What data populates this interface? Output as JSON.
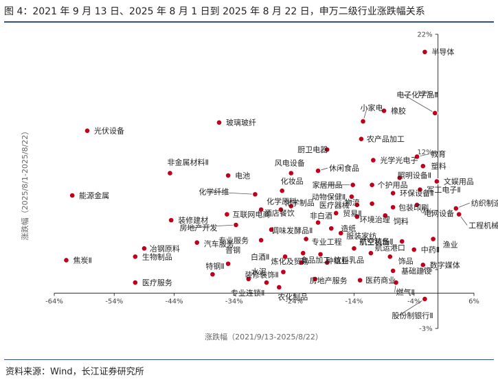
{
  "figure": {
    "title": "图 4：2021 年 9 月 13 日、2025 年 8 月 1 日到 2025 年 8 月 22 日，申万二级行业涨跌幅关系",
    "source": "资料来源：Wind，长江证券研究所"
  },
  "colors": {
    "accent": "#2b4f8a",
    "point_fill": "#c0001a",
    "point_stroke": "#ffffff",
    "axis": "#333333",
    "leader": "#555555"
  },
  "chart_data": {
    "type": "scatter",
    "title": "",
    "xlabel": "涨跌幅（2021/9/13-2025/8/22）",
    "ylabel": "涨跌幅（2025/8/1-2025/8/22）",
    "xlim": [
      -64,
      6
    ],
    "ylim": [
      -3,
      22
    ],
    "x_ticks": [
      -64,
      -54,
      -44,
      -34,
      -24,
      -14,
      -4,
      6
    ],
    "x_tick_labels": [
      "-64%",
      "-54%",
      "-44%",
      "-34%",
      "-24%",
      "-14%",
      "-4%",
      "6%"
    ],
    "y_ticks": [
      -3,
      2,
      7,
      12,
      17,
      22
    ],
    "y_tick_labels": [
      "-3%",
      "2%",
      "7%",
      "12%",
      "17%",
      "22%"
    ],
    "grid": false,
    "legend": "none",
    "points": [
      {
        "name": "半导体",
        "x": -2.2,
        "y": 20.5
      },
      {
        "name": "电子化学品Ⅱ",
        "x": -0.5,
        "y": 15.3
      },
      {
        "name": "橡胶",
        "x": -9,
        "y": 15.5
      },
      {
        "name": "小家电",
        "x": -12.5,
        "y": 14.6
      },
      {
        "name": "农产品加工",
        "x": -12.8,
        "y": 13.1
      },
      {
        "name": "光伏设备",
        "x": -58.5,
        "y": 13.8
      },
      {
        "name": "玻璃玻纤",
        "x": -36.5,
        "y": 14.5
      },
      {
        "name": "厨卫电器",
        "x": -18.5,
        "y": 12.2
      },
      {
        "name": "教育",
        "x": -3.5,
        "y": 11.6
      },
      {
        "name": "光学光电子",
        "x": -10.8,
        "y": 11.3
      },
      {
        "name": "塑料",
        "x": -2.5,
        "y": 10.8
      },
      {
        "name": "风电设备",
        "x": -24.5,
        "y": 10.2
      },
      {
        "name": "休闲食品",
        "x": -20,
        "y": 10.4
      },
      {
        "name": "照明设备Ⅱ",
        "x": -6.4,
        "y": 9.8
      },
      {
        "name": "文娱用品",
        "x": -0.2,
        "y": 9.5
      },
      {
        "name": "非金属材料Ⅱ",
        "x": -44.7,
        "y": 10.2
      },
      {
        "name": "电池",
        "x": -35,
        "y": 10
      },
      {
        "name": "家居用品",
        "x": -14.2,
        "y": 9.2
      },
      {
        "name": "个护用品",
        "x": -11,
        "y": 9.2
      },
      {
        "name": "军工电子Ⅱ",
        "x": -3,
        "y": 8.8
      },
      {
        "name": "化妆品",
        "x": -26,
        "y": 8.7
      },
      {
        "name": "动物保健Ⅱ",
        "x": -14.4,
        "y": 8.2
      },
      {
        "name": "环保设备Ⅱ",
        "x": -7.5,
        "y": 8.5
      },
      {
        "name": "能源金属",
        "x": -61,
        "y": 8.3
      },
      {
        "name": "化学纤维",
        "x": -30.5,
        "y": 8.4
      },
      {
        "name": "医疗器械",
        "x": -13.5,
        "y": 7.5
      },
      {
        "name": "纺织制造",
        "x": 3,
        "y": 7.2
      },
      {
        "name": "化学原料",
        "x": -29.5,
        "y": 7.1
      },
      {
        "name": "化学制品",
        "x": -24.5,
        "y": 7.4
      },
      {
        "name": "物流",
        "x": -11,
        "y": 7.6
      },
      {
        "name": "包装印刷",
        "x": -7.5,
        "y": 7.3
      },
      {
        "name": "电网设备",
        "x": -3.5,
        "y": 7.5
      },
      {
        "name": "酒店餐饮",
        "x": -26.2,
        "y": 7.1
      },
      {
        "name": "贸易Ⅱ",
        "x": -17,
        "y": 6.8
      },
      {
        "name": "环境治理",
        "x": -13.5,
        "y": 6.5
      },
      {
        "name": "饲料",
        "x": -8.8,
        "y": 6.6
      },
      {
        "name": "工程机械",
        "x": 3.5,
        "y": 6.7
      },
      {
        "name": "装修建材",
        "x": -44.5,
        "y": 6.2
      },
      {
        "name": "互联网电商",
        "x": -35.2,
        "y": 6.7
      },
      {
        "name": "非白酒",
        "x": -20,
        "y": 6
      },
      {
        "name": "造纸",
        "x": -17.8,
        "y": 5.5
      },
      {
        "name": "房地产开发",
        "x": -33.7,
        "y": 5.8
      },
      {
        "name": "调味发酵品Ⅱ",
        "x": -27.8,
        "y": 5.4
      },
      {
        "name": "服装家纺",
        "x": -16.2,
        "y": 5.1
      },
      {
        "name": "航空装备Ⅱ",
        "x": -6,
        "y": 4.4
      },
      {
        "name": "渔业",
        "x": -0.8,
        "y": 4.6
      },
      {
        "name": "冶钢原料",
        "x": -49,
        "y": 3.8
      },
      {
        "name": "汽车服务",
        "x": -40.2,
        "y": 4.3
      },
      {
        "name": "专业服务",
        "x": -29.5,
        "y": 4.5
      },
      {
        "name": "专业工程",
        "x": -22,
        "y": 4.6
      },
      {
        "name": "航空机场",
        "x": -14,
        "y": 3.8
      },
      {
        "name": "中药Ⅱ",
        "x": -4,
        "y": 3.7
      },
      {
        "name": "生物制品",
        "x": -50.5,
        "y": 3.1
      },
      {
        "name": "白酒Ⅱ",
        "x": -25.5,
        "y": 3.1
      },
      {
        "name": "食品加工",
        "x": -22.5,
        "y": 3.4
      },
      {
        "name": "种植业",
        "x": -19.6,
        "y": 3.3
      },
      {
        "name": "航运港口",
        "x": -11.2,
        "y": 3.4
      },
      {
        "name": "饰品",
        "x": -8,
        "y": 3.1
      },
      {
        "name": "焦炭Ⅱ",
        "x": -62,
        "y": 2.8
      },
      {
        "name": "普钢",
        "x": -35,
        "y": 2.5
      },
      {
        "name": "炼化及贸易",
        "x": -22.8,
        "y": 2.6
      },
      {
        "name": "饮料乳品",
        "x": -18.5,
        "y": 2.6
      },
      {
        "name": "数字媒体",
        "x": -2.5,
        "y": 2.4
      },
      {
        "name": "基础建设",
        "x": -7.5,
        "y": 1.9
      },
      {
        "name": "特钢Ⅱ",
        "x": -37.6,
        "y": 1.6
      },
      {
        "name": "装修装饰Ⅱ",
        "x": -25.8,
        "y": 1.8
      },
      {
        "name": "水泥",
        "x": -31.6,
        "y": 1.2
      },
      {
        "name": "医疗服务",
        "x": -50.5,
        "y": 0.9
      },
      {
        "name": "专业连锁Ⅱ",
        "x": -28.6,
        "y": 0.9
      },
      {
        "name": "房地产服务",
        "x": -20.5,
        "y": 1.2
      },
      {
        "name": "医药商业",
        "x": -13,
        "y": 1.1
      },
      {
        "name": "燃气Ⅱ",
        "x": -7,
        "y": 0.9
      },
      {
        "name": "农化制品",
        "x": -26.5,
        "y": 0.5
      },
      {
        "name": "股份制银行Ⅱ",
        "x": -2.2,
        "y": -0.5
      }
    ]
  }
}
